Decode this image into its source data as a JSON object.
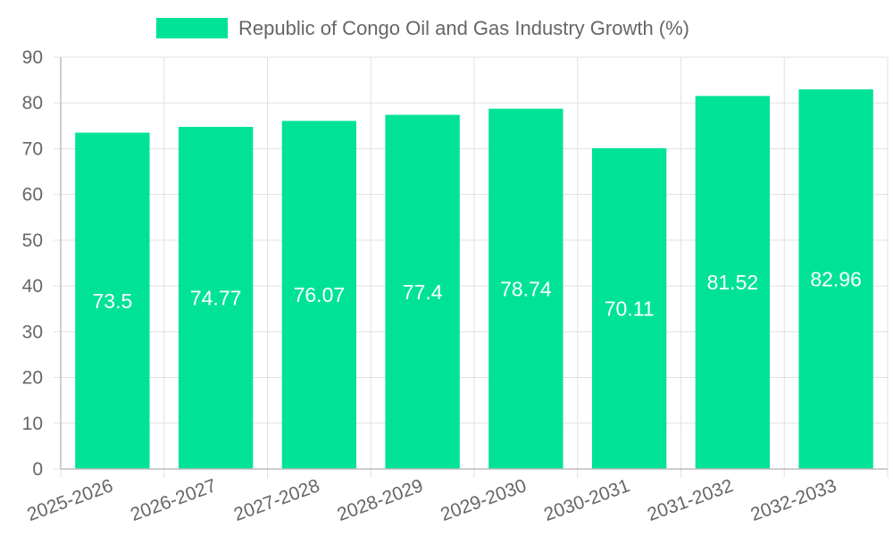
{
  "chart_data": {
    "type": "bar",
    "title": "",
    "legend": {
      "label": "Republic of Congo Oil and Gas Industry Growth (%)",
      "position": "top"
    },
    "xlabel": "",
    "ylabel": "",
    "categories": [
      "2025-2026",
      "2026-2027",
      "2027-2028",
      "2028-2029",
      "2029-2030",
      "2030-2031",
      "2031-2032",
      "2032-2033"
    ],
    "series": [
      {
        "name": "Republic of Congo Oil and Gas Industry Growth (%)",
        "values": [
          73.5,
          74.77,
          76.07,
          77.4,
          78.74,
          70.11,
          81.52,
          82.96
        ]
      }
    ],
    "ylim": [
      0,
      90
    ],
    "yticks": [
      0,
      10,
      20,
      30,
      40,
      50,
      60,
      70,
      80,
      90
    ],
    "grid": true,
    "data_labels": true,
    "colors": {
      "bar": "#00e396",
      "label": "#ffffff",
      "tick": "#666666"
    }
  }
}
